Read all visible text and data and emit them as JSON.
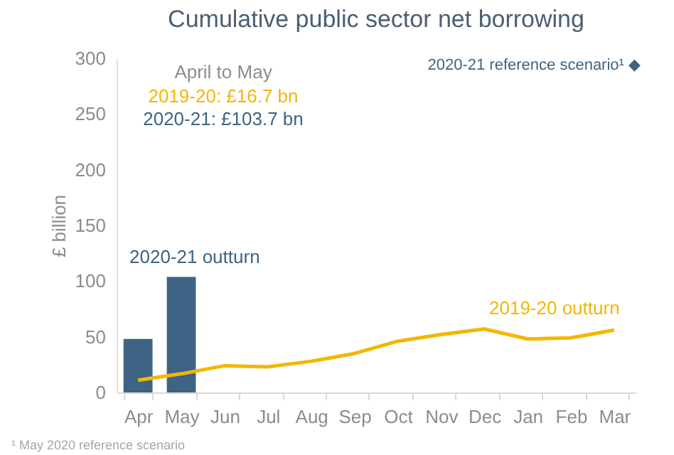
{
  "chart_data": {
    "type": "bar",
    "title": "Cumulative public sector net borrowing",
    "ylabel": "£ billion",
    "categories": [
      "Apr",
      "May",
      "Jun",
      "Jul",
      "Aug",
      "Sep",
      "Oct",
      "Nov",
      "Dec",
      "Jan",
      "Feb",
      "Mar"
    ],
    "series": [
      {
        "name": "2020-21 outturn",
        "color": "#3e6384",
        "values": [
          48,
          103.7,
          null,
          null,
          null,
          null,
          null,
          null,
          null,
          null,
          null,
          null
        ]
      },
      {
        "name": "2019-20 outturn",
        "type": "line",
        "color": "#f2b705",
        "values": [
          11,
          16.7,
          24,
          23,
          28,
          35,
          46,
          52,
          57,
          48,
          49,
          56
        ]
      }
    ],
    "ylim": [
      0,
      300
    ],
    "yticks": [
      0,
      50,
      100,
      150,
      200,
      250,
      300
    ],
    "grid": false,
    "annotations": [
      "April to May",
      "2019-20: £16.7 bn",
      "2020-21: £103.7 bn",
      "2020-21 reference scenario¹ ◆",
      "¹ May 2020 reference scenario"
    ]
  }
}
